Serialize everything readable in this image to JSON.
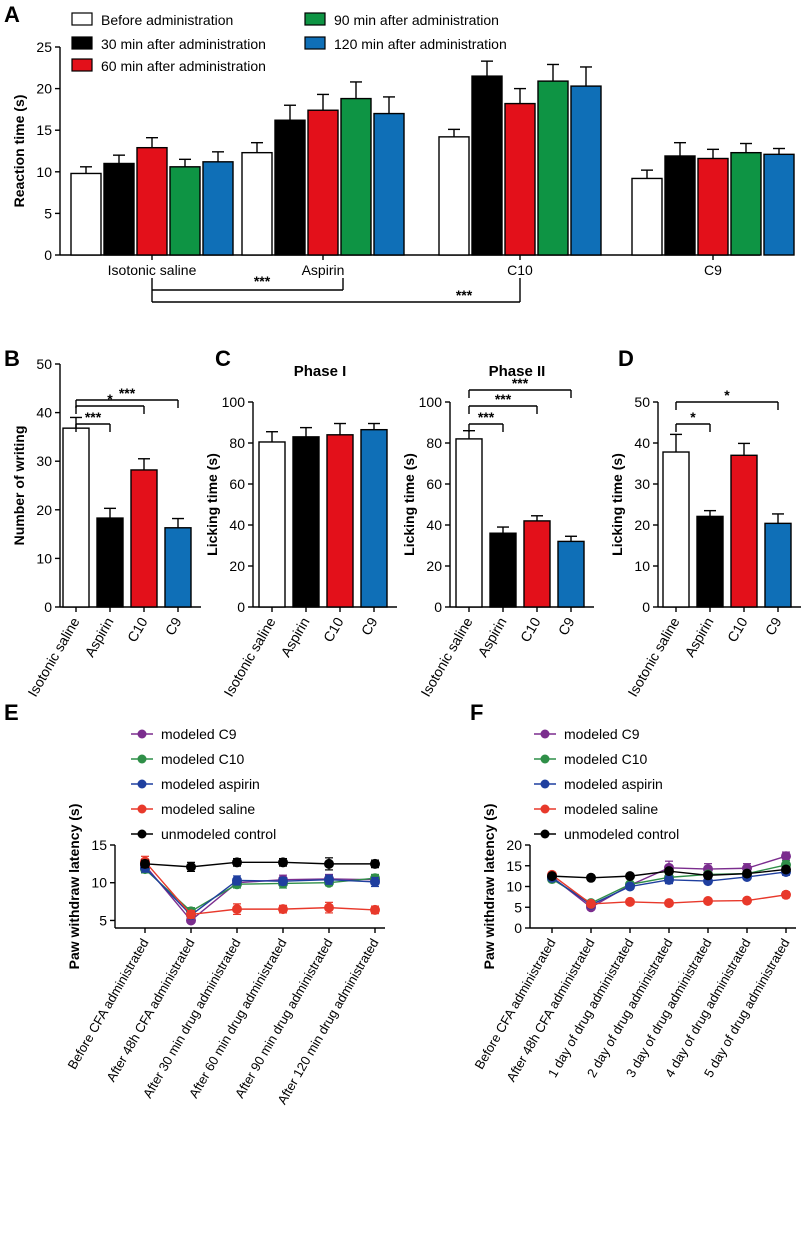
{
  "panel_labels": {
    "A": "A",
    "B": "B",
    "C": "C",
    "D": "D",
    "E": "E",
    "F": "F"
  },
  "colors": {
    "before": "#ffffff",
    "m30": "#000000",
    "m60": "#e3101a",
    "m90": "#0e9444",
    "m120": "#0f6fb7",
    "c9": "#7b2d8e",
    "c10": "#2f8f48",
    "aspirin": "#1f3f9f",
    "saline": "#e8392b",
    "control": "#000000"
  },
  "chart_data": [
    {
      "id": "A",
      "type": "bar",
      "ylabel": "Reaction time (s)",
      "ylim": [
        0,
        25
      ],
      "yticks": [
        0,
        5,
        10,
        15,
        20,
        25
      ],
      "categories": [
        "Isotonic saline",
        "Aspirin",
        "C10",
        "C9"
      ],
      "series": [
        {
          "name": "Before administration",
          "color": "#ffffff",
          "values": [
            9.8,
            12.3,
            14.2,
            9.2
          ],
          "errors": [
            0.8,
            1.2,
            0.9,
            1.0
          ]
        },
        {
          "name": "30 min after administration",
          "color": "#000000",
          "values": [
            11.0,
            16.2,
            21.5,
            11.9
          ],
          "errors": [
            1.0,
            1.8,
            1.8,
            1.6
          ]
        },
        {
          "name": "60 min after administration",
          "color": "#e3101a",
          "values": [
            12.9,
            17.4,
            18.2,
            11.6
          ],
          "errors": [
            1.2,
            1.9,
            1.8,
            1.1
          ]
        },
        {
          "name": "90 min after administration",
          "color": "#0e9444",
          "values": [
            10.6,
            18.8,
            20.9,
            12.3
          ],
          "errors": [
            0.9,
            2.0,
            2.0,
            1.1
          ]
        },
        {
          "name": "120 min after administration",
          "color": "#0f6fb7",
          "values": [
            11.2,
            17.0,
            20.3,
            12.1
          ],
          "errors": [
            1.2,
            2.0,
            2.3,
            0.7
          ]
        }
      ],
      "significance": [
        {
          "from": "Isotonic saline",
          "to": "Aspirin",
          "label": "***"
        },
        {
          "from": "Isotonic saline",
          "to": "C10",
          "label": "***"
        }
      ]
    },
    {
      "id": "B",
      "type": "bar",
      "ylabel": "Number of writing",
      "ylim": [
        0,
        50
      ],
      "yticks": [
        0,
        10,
        20,
        30,
        40,
        50
      ],
      "categories": [
        "Isotonic saline",
        "Aspirin",
        "C10",
        "C9"
      ],
      "colors": [
        "#ffffff",
        "#000000",
        "#e3101a",
        "#0f6fb7"
      ],
      "values": [
        36.8,
        18.3,
        28.2,
        16.3
      ],
      "errors": [
        2.2,
        2.0,
        2.3,
        1.9
      ],
      "significance": [
        {
          "from": "Isotonic saline",
          "to": "Aspirin",
          "label": "***"
        },
        {
          "from": "Isotonic saline",
          "to": "C10",
          "label": "*"
        },
        {
          "from": "Isotonic saline",
          "to": "C9",
          "label": "***"
        }
      ]
    },
    {
      "id": "C1",
      "type": "bar",
      "title": "Phase I",
      "ylabel": "Licking time (s)",
      "ylim": [
        0,
        100
      ],
      "yticks": [
        0,
        20,
        40,
        60,
        80,
        100
      ],
      "categories": [
        "Isotonic saline",
        "Aspirin",
        "C10",
        "C9"
      ],
      "colors": [
        "#ffffff",
        "#000000",
        "#e3101a",
        "#0f6fb7"
      ],
      "values": [
        80.5,
        83.0,
        84.0,
        86.5
      ],
      "errors": [
        5.0,
        4.5,
        5.5,
        3.0
      ],
      "significance": []
    },
    {
      "id": "C2",
      "type": "bar",
      "title": "Phase II",
      "ylabel": "Licking time (s)",
      "ylim": [
        0,
        100
      ],
      "yticks": [
        0,
        20,
        40,
        60,
        80,
        100
      ],
      "categories": [
        "Isotonic saline",
        "Aspirin",
        "C10",
        "C9"
      ],
      "colors": [
        "#ffffff",
        "#000000",
        "#e3101a",
        "#0f6fb7"
      ],
      "values": [
        82.0,
        36.0,
        42.0,
        32.0
      ],
      "errors": [
        4.0,
        3.0,
        2.5,
        2.5
      ],
      "significance": [
        {
          "from": "Isotonic saline",
          "to": "Aspirin",
          "label": "***"
        },
        {
          "from": "Isotonic saline",
          "to": "C10",
          "label": "***"
        },
        {
          "from": "Isotonic saline",
          "to": "C9",
          "label": "***"
        }
      ]
    },
    {
      "id": "D",
      "type": "bar",
      "ylabel": "Licking time (s)",
      "ylim": [
        0,
        50
      ],
      "yticks": [
        0,
        10,
        20,
        30,
        40,
        50
      ],
      "categories": [
        "Isotonic saline",
        "Aspirin",
        "C10",
        "C9"
      ],
      "colors": [
        "#ffffff",
        "#000000",
        "#e3101a",
        "#0f6fb7"
      ],
      "values": [
        37.8,
        22.1,
        37.0,
        20.4
      ],
      "errors": [
        4.3,
        1.4,
        2.9,
        2.3
      ],
      "significance": [
        {
          "from": "Isotonic saline",
          "to": "Aspirin",
          "label": "*"
        },
        {
          "from": "Isotonic saline",
          "to": "C9",
          "label": "*"
        }
      ]
    },
    {
      "id": "E",
      "type": "line",
      "ylabel": "Paw withdraw latency (s)",
      "ylim": [
        4,
        15
      ],
      "yticks": [
        5,
        10,
        15
      ],
      "categories": [
        "Before CFA administrated",
        "After 48h CFA administrated",
        "After 30 min drug administrated",
        "After 60 min drug administrated",
        "After 90 min drug administrated",
        "After 120 min drug administrated"
      ],
      "series": [
        {
          "name": "modeled C9",
          "color": "#7b2d8e",
          "values": [
            12.3,
            5.0,
            10.0,
            10.4,
            10.5,
            10.4
          ],
          "errors": [
            0.6,
            0.3,
            0.5,
            0.6,
            0.6,
            0.5
          ]
        },
        {
          "name": "modeled C10",
          "color": "#2f8f48",
          "values": [
            11.8,
            6.2,
            9.8,
            9.9,
            10.0,
            10.6
          ],
          "errors": [
            0.5,
            0.5,
            0.5,
            0.6,
            0.4,
            0.5
          ]
        },
        {
          "name": "modeled aspirin",
          "color": "#1f3f9f",
          "values": [
            12.0,
            5.7,
            10.3,
            10.2,
            10.4,
            10.1
          ],
          "errors": [
            0.6,
            0.4,
            0.6,
            0.5,
            0.6,
            0.6
          ]
        },
        {
          "name": "modeled saline",
          "color": "#e8392b",
          "values": [
            12.8,
            5.8,
            6.5,
            6.5,
            6.7,
            6.4
          ],
          "errors": [
            0.7,
            0.5,
            0.7,
            0.5,
            0.7,
            0.5
          ]
        },
        {
          "name": "unmodeled control",
          "color": "#000000",
          "values": [
            12.5,
            12.1,
            12.7,
            12.7,
            12.5,
            12.5
          ],
          "errors": [
            0.5,
            0.6,
            0.5,
            0.5,
            0.8,
            0.5
          ]
        }
      ]
    },
    {
      "id": "F",
      "type": "line",
      "ylabel": "Paw withdraw latency (s)",
      "ylim": [
        0,
        20
      ],
      "yticks": [
        0,
        5,
        10,
        15,
        20
      ],
      "categories": [
        "Before CFA administrated",
        "After 48h CFA administrated",
        "1 day of drug administrated",
        "2 day of drug administrated",
        "3 day of drug administrated",
        "4 day of drug administrated",
        "5 day of drug administrated"
      ],
      "series": [
        {
          "name": "modeled C9",
          "color": "#7b2d8e",
          "values": [
            12.3,
            5.0,
            10.3,
            14.5,
            14.2,
            14.4,
            17.3
          ],
          "errors": [
            0.5,
            0.4,
            0.6,
            1.6,
            1.3,
            1.1,
            1.0
          ]
        },
        {
          "name": "modeled C10",
          "color": "#2f8f48",
          "values": [
            11.8,
            6.0,
            10.5,
            12.2,
            12.9,
            13.1,
            15.2
          ],
          "errors": [
            0.5,
            0.5,
            0.5,
            1.0,
            0.6,
            0.6,
            1.0
          ]
        },
        {
          "name": "modeled aspirin",
          "color": "#1f3f9f",
          "values": [
            12.1,
            5.6,
            10.0,
            11.6,
            11.3,
            12.3,
            13.5
          ],
          "errors": [
            0.5,
            0.5,
            0.6,
            0.9,
            0.5,
            0.6,
            0.8
          ]
        },
        {
          "name": "modeled saline",
          "color": "#e8392b",
          "values": [
            12.8,
            5.8,
            6.3,
            6.0,
            6.5,
            6.6,
            8.0
          ],
          "errors": [
            0.6,
            0.5,
            0.5,
            0.5,
            0.5,
            0.5,
            0.7
          ]
        },
        {
          "name": "unmodeled control",
          "color": "#000000",
          "values": [
            12.5,
            12.1,
            12.5,
            13.7,
            12.7,
            13.1,
            14.1
          ],
          "errors": [
            0.5,
            0.6,
            0.5,
            0.6,
            0.5,
            0.5,
            0.6
          ]
        }
      ]
    }
  ]
}
